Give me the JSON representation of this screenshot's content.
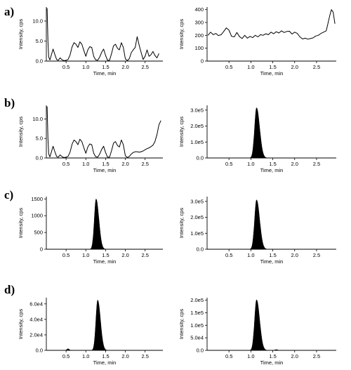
{
  "chart_data": [
    {
      "panel": "a)",
      "type": "line",
      "xlabel": "Time, min",
      "ylabel": "Intensity, cps",
      "xlim": [
        0,
        2.95
      ],
      "ylim": [
        0,
        13.5
      ],
      "xticks": [
        "0.5",
        "1.0",
        "1.5",
        "2.0",
        "2.5"
      ],
      "xtick_values": [
        0.5,
        1.0,
        1.5,
        2.0,
        2.5
      ],
      "yticks": [
        "0.0",
        "5.0",
        "10.0"
      ],
      "ytick_values": [
        0,
        5,
        10
      ],
      "x": [
        0.02,
        0.04,
        0.06,
        0.09,
        0.13,
        0.17,
        0.21,
        0.26,
        0.3,
        0.35,
        0.4,
        0.45,
        0.5,
        0.55,
        0.6,
        0.65,
        0.7,
        0.75,
        0.8,
        0.85,
        0.9,
        0.95,
        1.0,
        1.05,
        1.1,
        1.15,
        1.2,
        1.25,
        1.3,
        1.35,
        1.4,
        1.45,
        1.5,
        1.55,
        1.6,
        1.65,
        1.7,
        1.75,
        1.8,
        1.85,
        1.9,
        1.95,
        2.0,
        2.05,
        2.1,
        2.15,
        2.2,
        2.25,
        2.3,
        2.35,
        2.4,
        2.45,
        2.5,
        2.55,
        2.6,
        2.65,
        2.7,
        2.75,
        2.8,
        2.85
      ],
      "y": [
        13.2,
        5.0,
        1.0,
        0.3,
        1.6,
        3.0,
        1.8,
        0.4,
        0.2,
        0.8,
        0.3,
        0.1,
        0.2,
        0.4,
        1.5,
        3.5,
        4.6,
        4.2,
        3.4,
        4.8,
        4.2,
        2.6,
        1.2,
        2.8,
        3.6,
        3.4,
        1.2,
        0.3,
        0.2,
        1.0,
        2.2,
        3.0,
        1.4,
        0.2,
        0.2,
        1.8,
        3.8,
        4.2,
        3.2,
        2.8,
        4.6,
        3.4,
        0.6,
        0.1,
        0.6,
        2.1,
        2.8,
        3.4,
        6.1,
        4.0,
        2.1,
        0.4,
        1.2,
        2.8,
        1.2,
        1.6,
        2.4,
        1.4,
        0.8,
        1.9
      ]
    },
    {
      "panel": "a)",
      "type": "line",
      "xlabel": "Time, min",
      "ylabel": "Intensity, cps",
      "xlim": [
        0,
        2.95
      ],
      "ylim": [
        0,
        420
      ],
      "xticks": [
        "0.5",
        "1.0",
        "1.5",
        "2.0",
        "2.5"
      ],
      "xtick_values": [
        0.5,
        1.0,
        1.5,
        2.0,
        2.5
      ],
      "yticks": [
        "0",
        "100",
        "200",
        "300",
        "400"
      ],
      "ytick_values": [
        0,
        100,
        200,
        300,
        400
      ],
      "x": [
        0.02,
        0.08,
        0.14,
        0.2,
        0.26,
        0.32,
        0.38,
        0.44,
        0.5,
        0.56,
        0.62,
        0.68,
        0.74,
        0.8,
        0.86,
        0.92,
        0.98,
        1.04,
        1.1,
        1.16,
        1.22,
        1.28,
        1.34,
        1.4,
        1.46,
        1.52,
        1.58,
        1.64,
        1.7,
        1.76,
        1.82,
        1.88,
        1.94,
        2.0,
        2.06,
        2.12,
        2.18,
        2.24,
        2.3,
        2.36,
        2.42,
        2.48,
        2.54,
        2.6,
        2.66,
        2.72,
        2.76,
        2.8,
        2.84,
        2.88,
        2.92
      ],
      "y": [
        200,
        225,
        205,
        215,
        198,
        205,
        230,
        258,
        240,
        192,
        188,
        222,
        190,
        175,
        200,
        178,
        192,
        182,
        200,
        188,
        205,
        200,
        212,
        205,
        225,
        212,
        228,
        218,
        235,
        222,
        230,
        232,
        210,
        225,
        215,
        188,
        172,
        178,
        170,
        175,
        180,
        195,
        200,
        215,
        225,
        235,
        290,
        350,
        400,
        380,
        290
      ]
    },
    {
      "panel": "b)",
      "type": "line",
      "xlabel": "Time, min",
      "ylabel": "Intensity, cps",
      "xlim": [
        0,
        2.95
      ],
      "ylim": [
        0,
        13.5
      ],
      "xticks": [
        "0.5",
        "1.0",
        "1.5",
        "2.0",
        "2.5"
      ],
      "xtick_values": [
        0.5,
        1.0,
        1.5,
        2.0,
        2.5
      ],
      "yticks": [
        "0.0",
        "5.0",
        "10.0"
      ],
      "ytick_values": [
        0,
        5,
        10
      ],
      "x": [
        0.02,
        0.04,
        0.06,
        0.09,
        0.13,
        0.17,
        0.21,
        0.26,
        0.3,
        0.35,
        0.4,
        0.45,
        0.5,
        0.55,
        0.6,
        0.65,
        0.7,
        0.75,
        0.8,
        0.85,
        0.9,
        0.95,
        1.0,
        1.05,
        1.1,
        1.15,
        1.2,
        1.25,
        1.3,
        1.35,
        1.4,
        1.45,
        1.5,
        1.55,
        1.6,
        1.65,
        1.7,
        1.75,
        1.8,
        1.85,
        1.9,
        1.95,
        2.0,
        2.05,
        2.1,
        2.15,
        2.2,
        2.25,
        2.3,
        2.35,
        2.4,
        2.45,
        2.5,
        2.55,
        2.6,
        2.65,
        2.7,
        2.75,
        2.8,
        2.85,
        2.9
      ],
      "y": [
        13.2,
        5.0,
        1.0,
        0.3,
        1.6,
        3.0,
        1.8,
        0.4,
        0.2,
        0.8,
        0.3,
        0.1,
        0.2,
        0.4,
        1.5,
        3.5,
        4.6,
        4.2,
        3.4,
        4.8,
        4.2,
        2.6,
        1.2,
        2.8,
        3.6,
        3.4,
        1.2,
        0.3,
        0.2,
        1.0,
        2.2,
        3.0,
        1.4,
        0.2,
        0.2,
        1.8,
        3.8,
        4.2,
        3.2,
        2.8,
        4.6,
        3.4,
        0.6,
        0.1,
        0.4,
        1.0,
        1.4,
        1.6,
        1.6,
        1.5,
        1.6,
        1.8,
        2.1,
        2.4,
        2.6,
        2.9,
        3.3,
        4.2,
        6.0,
        8.5,
        9.6
      ]
    },
    {
      "panel": "b)",
      "type": "area",
      "xlabel": "Time, min",
      "ylabel": "Intensity, cps",
      "xlim": [
        0,
        2.95
      ],
      "ylim": [
        0,
        330000
      ],
      "xticks": [
        "0.5",
        "1.0",
        "1.5",
        "2.0",
        "2.5"
      ],
      "xtick_values": [
        0.5,
        1.0,
        1.5,
        2.0,
        2.5
      ],
      "yticks": [
        "0.0",
        "1.0e5",
        "2.0e5",
        "3.0e5"
      ],
      "ytick_values": [
        0,
        100000,
        200000,
        300000
      ],
      "peak_center": 1.13,
      "peak_height": 315000,
      "peak_width_left": 0.045,
      "peak_width_right": 0.07
    },
    {
      "panel": "c)",
      "type": "area",
      "xlabel": "Time, min",
      "ylabel": "Intensity, cps",
      "xlim": [
        0,
        2.95
      ],
      "ylim": [
        0,
        1570
      ],
      "xticks": [
        "0.5",
        "1.0",
        "1.5",
        "2.0",
        "2.5"
      ],
      "xtick_values": [
        0.5,
        1.0,
        1.5,
        2.0,
        2.5
      ],
      "yticks": [
        "0",
        "500",
        "1000",
        "1500"
      ],
      "ytick_values": [
        0,
        500,
        1000,
        1500
      ],
      "peak_center": 1.26,
      "peak_height": 1500,
      "peak_width_left": 0.045,
      "peak_width_right": 0.07
    },
    {
      "panel": "c)",
      "type": "area",
      "xlabel": "Time, min",
      "ylabel": "Intensity, cps",
      "xlim": [
        0,
        2.95
      ],
      "ylim": [
        0,
        330000
      ],
      "xticks": [
        "0.5",
        "1.0",
        "1.5",
        "2.0",
        "2.5"
      ],
      "xtick_values": [
        0.5,
        1.0,
        1.5,
        2.0,
        2.5
      ],
      "yticks": [
        "0.0",
        "1.0e5",
        "2.0e5",
        "3.0e5"
      ],
      "ytick_values": [
        0,
        100000,
        200000,
        300000
      ],
      "peak_center": 1.13,
      "peak_height": 310000,
      "peak_width_left": 0.045,
      "peak_width_right": 0.07
    },
    {
      "panel": "d)",
      "type": "area",
      "xlabel": "Time, min",
      "ylabel": "Intensity, cps",
      "xlim": [
        0,
        2.95
      ],
      "ylim": [
        0,
        68000
      ],
      "xticks": [
        "0.5",
        "1.0",
        "1.5",
        "2.0",
        "2.5"
      ],
      "xtick_values": [
        0.5,
        1.0,
        1.5,
        2.0,
        2.5
      ],
      "yticks": [
        "0.0",
        "2.0e4",
        "4.0e4",
        "6.0e4"
      ],
      "ytick_values": [
        0,
        20000,
        40000,
        60000
      ],
      "peak_center": 1.3,
      "peak_height": 65000,
      "peak_width_left": 0.045,
      "peak_width_right": 0.07,
      "minor_peak_center": 0.55,
      "minor_peak_height": 2000
    },
    {
      "panel": "d)",
      "type": "area",
      "xlabel": "Time, min",
      "ylabel": "Intensity, cps",
      "xlim": [
        0,
        2.95
      ],
      "ylim": [
        0,
        210000
      ],
      "xticks": [
        "0.5",
        "1.0",
        "1.5",
        "2.0",
        "2.5"
      ],
      "xtick_values": [
        0.5,
        1.0,
        1.5,
        2.0,
        2.5
      ],
      "yticks": [
        "0.0",
        "5.0e4",
        "1.0e5",
        "1.5e5",
        "2.0e5"
      ],
      "ytick_values": [
        0,
        50000,
        100000,
        150000,
        200000
      ],
      "peak_center": 1.13,
      "peak_height": 202000,
      "peak_width_left": 0.045,
      "peak_width_right": 0.07,
      "minor_peak_center": 1.58,
      "minor_peak_height": 3000
    }
  ]
}
